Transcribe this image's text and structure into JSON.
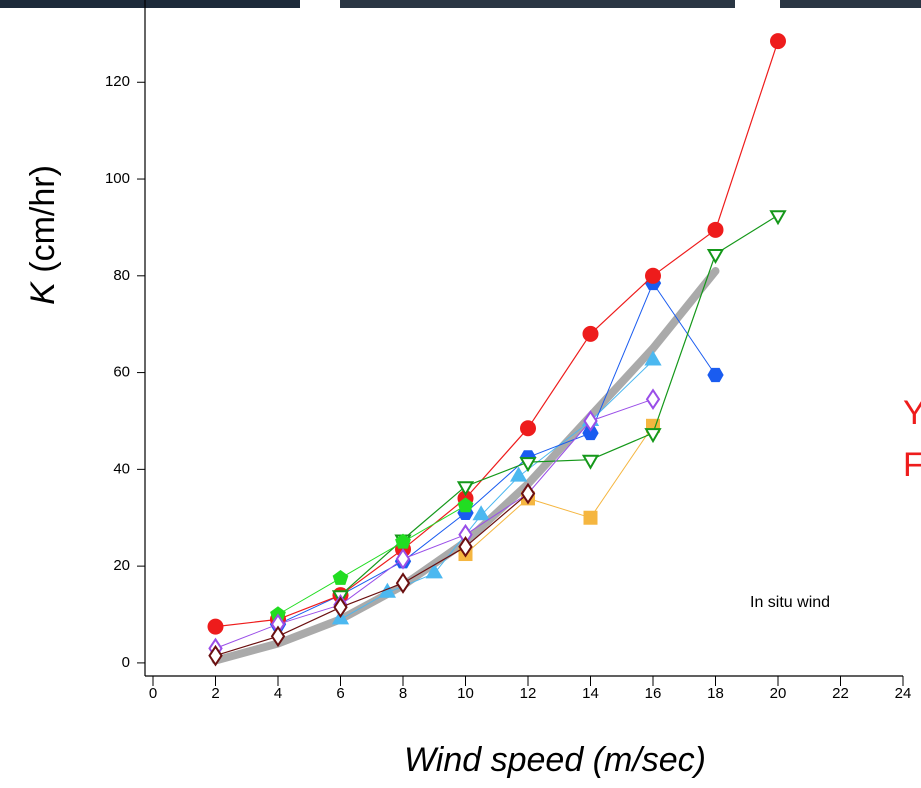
{
  "chart_data": {
    "type": "line",
    "x_label": "Wind speed (m/sec)",
    "y_label": {
      "symbol": "K",
      "unit": "(cm/hr)"
    },
    "annotations": [
      "In situ wind",
      "Y",
      "F"
    ],
    "xlim": [
      0,
      24
    ],
    "ylim": [
      -2.5,
      137
    ],
    "xticks": [
      0,
      2,
      4,
      6,
      8,
      10,
      12,
      14,
      16,
      18,
      20,
      22,
      24
    ],
    "yticks": [
      0,
      20,
      40,
      60,
      80,
      100,
      120
    ],
    "series": [
      {
        "color": "#aaaaaa",
        "marker": "none",
        "width": 8,
        "x": [
          2,
          4,
          6,
          8,
          10,
          12,
          14,
          16,
          18
        ],
        "values": [
          0.5,
          4,
          9,
          16,
          25,
          37,
          51,
          65,
          81
        ]
      },
      {
        "color": "#f5b640",
        "marker": "square",
        "filled": true,
        "width": 1,
        "x": [
          10,
          12,
          14,
          16
        ],
        "values": [
          22.5,
          34,
          30,
          49
        ]
      },
      {
        "color": "#4cb8f0",
        "marker": "triangle",
        "filled": true,
        "width": 1,
        "x": [
          6,
          7.5,
          9,
          10.5,
          11.7,
          14,
          16
        ],
        "values": [
          9,
          14.5,
          18.5,
          30.5,
          38.5,
          50,
          62.5
        ]
      },
      {
        "color": "#1a5cf0",
        "marker": "hexagon",
        "filled": true,
        "width": 1,
        "x": [
          4,
          6,
          8,
          10,
          12,
          14,
          16,
          18
        ],
        "values": [
          8,
          14,
          21,
          31,
          42.5,
          47.5,
          78.5,
          59.5
        ]
      },
      {
        "color": "#ee1c1c",
        "marker": "circle",
        "filled": true,
        "width": 1.2,
        "x": [
          2,
          4,
          6,
          8,
          10,
          12,
          14,
          16,
          18,
          20
        ],
        "values": [
          7.5,
          9,
          14,
          23.5,
          34,
          48.5,
          68,
          80,
          89.5,
          128.5
        ]
      },
      {
        "color": "#15981a",
        "marker": "triangle-down",
        "filled": false,
        "width": 1.2,
        "x": [
          6,
          8,
          10,
          12,
          14,
          16,
          18,
          20
        ],
        "values": [
          14,
          25.5,
          36.5,
          41.5,
          42,
          47.5,
          84.5,
          92.5
        ]
      },
      {
        "color": "#22dd22",
        "marker": "pentagon",
        "filled": true,
        "width": 1,
        "x": [
          4,
          6,
          8,
          10
        ],
        "values": [
          10,
          17.5,
          25,
          32.5
        ]
      },
      {
        "color": "#9a4ee8",
        "marker": "diamond",
        "filled": false,
        "width": 1,
        "x": [
          2,
          4,
          6,
          8,
          10,
          12,
          14,
          16
        ],
        "values": [
          3,
          8,
          12,
          21.5,
          26.5,
          35,
          50,
          54.5
        ]
      },
      {
        "color": "#6b1010",
        "marker": "diamond",
        "filled": false,
        "width": 1.2,
        "x": [
          2,
          4,
          6,
          8,
          10,
          12
        ],
        "values": [
          1.5,
          5.5,
          11.5,
          16.5,
          24,
          35
        ]
      }
    ]
  }
}
